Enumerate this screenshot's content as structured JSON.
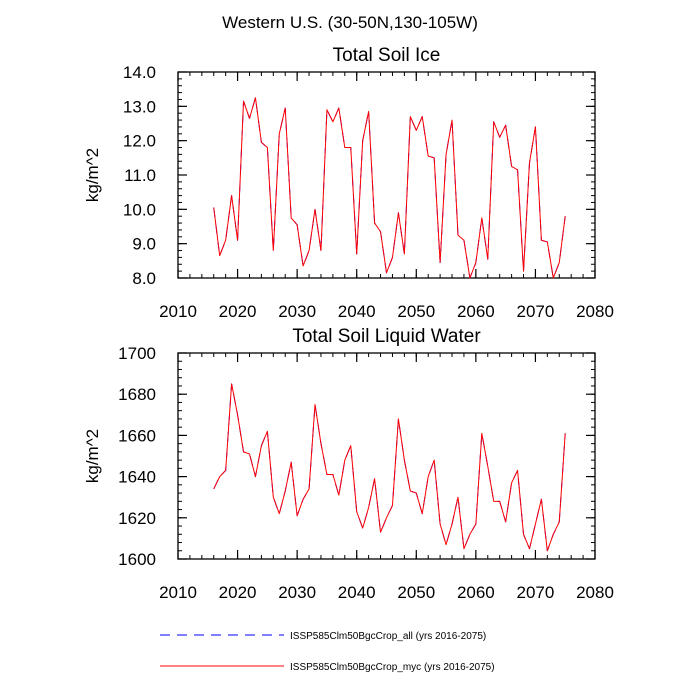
{
  "figure_title": "Western U.S. (30-50N,130-105W)",
  "chart_data": [
    {
      "type": "line",
      "title": "Total Soil Ice",
      "xlabel": "",
      "ylabel": "kg/m^2",
      "xlim": [
        2010,
        2080
      ],
      "ylim": [
        8.0,
        14.0
      ],
      "xticks": [
        "2010",
        "2020",
        "2030",
        "2040",
        "2050",
        "2060",
        "2070",
        "2080"
      ],
      "yticks": [
        "8.0",
        "9.0",
        "10.0",
        "11.0",
        "12.0",
        "13.0",
        "14.0"
      ],
      "x": [
        2016,
        2017,
        2018,
        2019,
        2020,
        2021,
        2022,
        2023,
        2024,
        2025,
        2026,
        2027,
        2028,
        2029,
        2030,
        2031,
        2032,
        2033,
        2034,
        2035,
        2036,
        2037,
        2038,
        2039,
        2040,
        2041,
        2042,
        2043,
        2044,
        2045,
        2046,
        2047,
        2048,
        2049,
        2050,
        2051,
        2052,
        2053,
        2054,
        2055,
        2056,
        2057,
        2058,
        2059,
        2060,
        2061,
        2062,
        2063,
        2064,
        2065,
        2066,
        2067,
        2068,
        2069,
        2070,
        2071,
        2072,
        2073,
        2074,
        2075
      ],
      "series": [
        {
          "name": "ISSP585Clm50BgcCrop_all (yrs 2016-2075)",
          "color": "#0000ff",
          "dash": "dashed",
          "values": [
            10.05,
            8.65,
            9.1,
            10.4,
            9.1,
            13.15,
            12.65,
            13.25,
            11.95,
            11.8,
            8.8,
            12.2,
            12.95,
            9.75,
            9.55,
            8.35,
            8.8,
            10.0,
            8.8,
            12.9,
            12.55,
            12.95,
            11.8,
            11.8,
            8.7,
            12.0,
            12.85,
            9.6,
            9.35,
            8.15,
            8.6,
            9.9,
            8.7,
            12.7,
            12.3,
            12.7,
            11.55,
            11.5,
            8.45,
            11.6,
            12.6,
            9.25,
            9.1,
            8.0,
            8.45,
            9.75,
            8.55,
            12.55,
            12.1,
            12.45,
            11.25,
            11.15,
            8.2,
            11.35,
            12.4,
            9.1,
            9.05,
            8.0,
            8.45,
            9.8
          ]
        },
        {
          "name": "ISSP585Clm50BgcCrop_myc (yrs 2016-2075)",
          "color": "#ff0000",
          "dash": "solid",
          "values": [
            10.05,
            8.65,
            9.1,
            10.4,
            9.1,
            13.15,
            12.65,
            13.25,
            11.95,
            11.8,
            8.8,
            12.2,
            12.95,
            9.75,
            9.55,
            8.35,
            8.8,
            10.0,
            8.8,
            12.9,
            12.55,
            12.95,
            11.8,
            11.8,
            8.7,
            12.0,
            12.85,
            9.6,
            9.35,
            8.15,
            8.6,
            9.9,
            8.7,
            12.7,
            12.3,
            12.7,
            11.55,
            11.5,
            8.45,
            11.6,
            12.6,
            9.25,
            9.1,
            8.0,
            8.45,
            9.75,
            8.55,
            12.55,
            12.1,
            12.45,
            11.25,
            11.15,
            8.2,
            11.35,
            12.4,
            9.1,
            9.05,
            8.0,
            8.45,
            9.8
          ]
        }
      ]
    },
    {
      "type": "line",
      "title": "Total Soil Liquid Water",
      "xlabel": "",
      "ylabel": "kg/m^2",
      "xlim": [
        2010,
        2080
      ],
      "ylim": [
        1600,
        1700
      ],
      "xticks": [
        "2010",
        "2020",
        "2030",
        "2040",
        "2050",
        "2060",
        "2070",
        "2080"
      ],
      "yticks": [
        "1600",
        "1620",
        "1640",
        "1660",
        "1680",
        "1700"
      ],
      "x": [
        2016,
        2017,
        2018,
        2019,
        2020,
        2021,
        2022,
        2023,
        2024,
        2025,
        2026,
        2027,
        2028,
        2029,
        2030,
        2031,
        2032,
        2033,
        2034,
        2035,
        2036,
        2037,
        2038,
        2039,
        2040,
        2041,
        2042,
        2043,
        2044,
        2045,
        2046,
        2047,
        2048,
        2049,
        2050,
        2051,
        2052,
        2053,
        2054,
        2055,
        2056,
        2057,
        2058,
        2059,
        2060,
        2061,
        2062,
        2063,
        2064,
        2065,
        2066,
        2067,
        2068,
        2069,
        2070,
        2071,
        2072,
        2073,
        2074,
        2075
      ],
      "series": [
        {
          "name": "ISSP585Clm50BgcCrop_all (yrs 2016-2075)",
          "color": "#0000ff",
          "dash": "dashed",
          "values": [
            1634,
            1640,
            1643,
            1685,
            1670,
            1652,
            1651,
            1640,
            1655,
            1662,
            1630,
            1622,
            1633,
            1647,
            1621,
            1629,
            1634,
            1675,
            1656,
            1641,
            1641,
            1631,
            1648,
            1655,
            1623,
            1615,
            1625,
            1639,
            1613,
            1620,
            1626,
            1668,
            1648,
            1633,
            1632,
            1622,
            1640,
            1648,
            1617,
            1607,
            1617,
            1630,
            1605,
            1612,
            1617,
            1661,
            1645,
            1628,
            1628,
            1618,
            1637,
            1643,
            1612,
            1605,
            1617,
            1629,
            1604,
            1612,
            1618,
            1661
          ]
        },
        {
          "name": "ISSP585Clm50BgcCrop_myc (yrs 2016-2075)",
          "color": "#ff0000",
          "dash": "solid",
          "values": [
            1634,
            1640,
            1643,
            1685,
            1670,
            1652,
            1651,
            1640,
            1655,
            1662,
            1630,
            1622,
            1633,
            1647,
            1621,
            1629,
            1634,
            1675,
            1656,
            1641,
            1641,
            1631,
            1648,
            1655,
            1623,
            1615,
            1625,
            1639,
            1613,
            1620,
            1626,
            1668,
            1648,
            1633,
            1632,
            1622,
            1640,
            1648,
            1617,
            1607,
            1617,
            1630,
            1605,
            1612,
            1617,
            1661,
            1645,
            1628,
            1628,
            1618,
            1637,
            1643,
            1612,
            1605,
            1617,
            1629,
            1604,
            1612,
            1618,
            1661
          ]
        }
      ]
    }
  ]
}
